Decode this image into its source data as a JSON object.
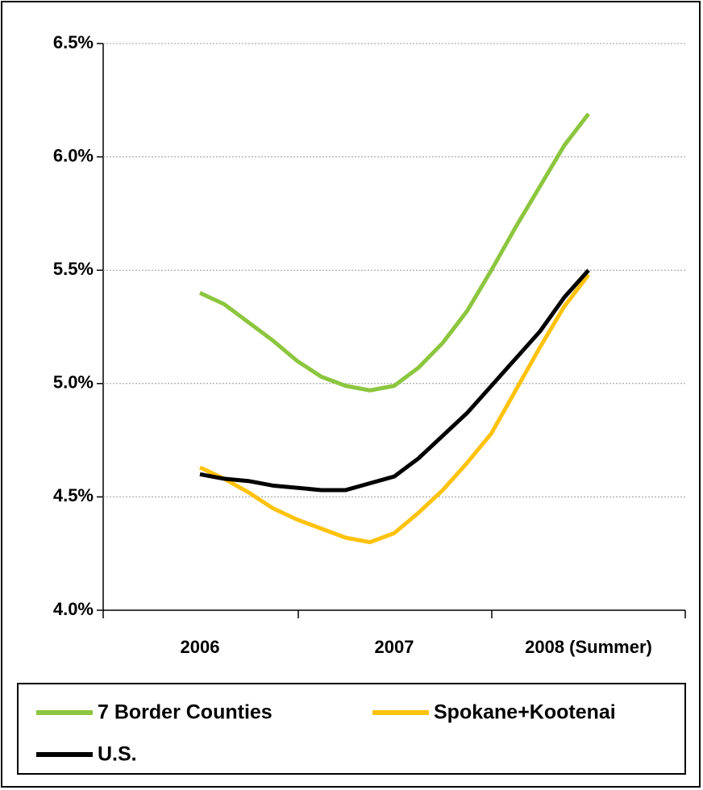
{
  "chart_data": {
    "type": "line",
    "categories": [
      "2006",
      null,
      null,
      null,
      null,
      null,
      null,
      null,
      "2007",
      null,
      null,
      null,
      null,
      null,
      null,
      null,
      "2008 (Summer)"
    ],
    "series": [
      {
        "name": "7 Border Counties",
        "color": "#8cc63f",
        "values": [
          5.4,
          5.35,
          5.27,
          5.19,
          5.1,
          5.03,
          4.99,
          4.97,
          4.99,
          5.07,
          5.18,
          5.32,
          5.5,
          5.69,
          5.87,
          6.05,
          6.19
        ]
      },
      {
        "name": "Spokane+Kootenai",
        "color": "#ffc20e",
        "values": [
          4.63,
          4.58,
          4.52,
          4.45,
          4.4,
          4.36,
          4.32,
          4.3,
          4.34,
          4.43,
          4.53,
          4.65,
          4.78,
          4.97,
          5.16,
          5.34,
          5.48
        ]
      },
      {
        "name": "U.S.",
        "color": "#000000",
        "values": [
          4.6,
          4.58,
          4.57,
          4.55,
          4.54,
          4.53,
          4.53,
          4.56,
          4.59,
          4.67,
          4.77,
          4.87,
          4.99,
          5.11,
          5.23,
          5.38,
          5.5
        ]
      }
    ],
    "ylim": [
      4,
      6.5
    ],
    "yticks": [
      {
        "value": 4,
        "label": "4.0%"
      },
      {
        "value": 4.5,
        "label": "4.5%"
      },
      {
        "value": 5,
        "label": "5.0%"
      },
      {
        "value": 5.5,
        "label": "5.5%"
      },
      {
        "value": 6,
        "label": "6.0%"
      },
      {
        "value": 6.5,
        "label": "6.5%"
      }
    ],
    "grid": true
  }
}
